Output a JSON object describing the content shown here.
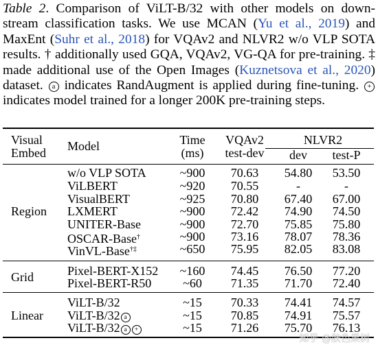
{
  "caption": {
    "label": "Table 2",
    "seg1": ". Comparison of ViLT-B/32 with other models on down-stream classification tasks. We use MCAN (",
    "cite1": "Yu et al., 2019",
    "seg2": ") and MaxEnt (",
    "cite2": "Suhr et al., 2018",
    "seg3": ") for VQAv2 and NLVR2 w/o VLP SOTA results. † additionally used GQA, VQAv2, VG-QA for pre-training. ‡ made additional use of the Open Images (",
    "cite3": "Kuznetsova et al., 2020",
    "seg4": ") dataset. ",
    "symbol_a": "a",
    "seg5": " indicates RandAugment is applied during fine-tuning. ",
    "symbol_plus": "+",
    "seg6": " indicates model trained for a longer 200K pre-training steps."
  },
  "headers": {
    "visual_embed_1": "Visual",
    "visual_embed_2": "Embed",
    "model": "Model",
    "time_1": "Time",
    "time_2": "(ms)",
    "vqa_1": "VQAv2",
    "vqa_2": "test-dev",
    "nlvr": "NLVR2",
    "dev": "dev",
    "testp": "test-P"
  },
  "groups": [
    {
      "embed": "Region",
      "rows": [
        {
          "model": "w/o VLP SOTA",
          "sup": "",
          "time": "~900",
          "vqa": "70.63",
          "dev": "54.80",
          "testp": "53.50"
        },
        {
          "model": "ViLBERT",
          "sup": "",
          "time": "~920",
          "vqa": "70.55",
          "dev": "-",
          "testp": "-"
        },
        {
          "model": "VisualBERT",
          "sup": "",
          "time": "~925",
          "vqa": "70.80",
          "dev": "67.40",
          "testp": "67.00"
        },
        {
          "model": "LXMERT",
          "sup": "",
          "time": "~900",
          "vqa": "72.42",
          "dev": "74.90",
          "testp": "74.50"
        },
        {
          "model": "UNITER-Base",
          "sup": "",
          "time": "~900",
          "vqa": "72.70",
          "dev": "75.85",
          "testp": "75.80"
        },
        {
          "model": "OSCAR-Base",
          "sup": "†",
          "time": "~900",
          "vqa": "73.16",
          "dev": "78.07",
          "testp": "78.36"
        },
        {
          "model": "VinVL-Base",
          "sup": "†‡",
          "time": "~650",
          "vqa": "75.95",
          "dev": "82.05",
          "testp": "83.08"
        }
      ]
    },
    {
      "embed": "Grid",
      "rows": [
        {
          "model": "Pixel-BERT-X152",
          "sup": "",
          "time": "~160",
          "vqa": "74.45",
          "dev": "76.50",
          "testp": "77.20"
        },
        {
          "model": "Pixel-BERT-R50",
          "sup": "",
          "time": "~60",
          "vqa": "71.35",
          "dev": "71.70",
          "testp": "72.40"
        }
      ]
    },
    {
      "embed": "Linear",
      "rows": [
        {
          "model": "ViLT-B/32",
          "marks": [],
          "time": "~15",
          "vqa": "70.33",
          "dev": "74.41",
          "testp": "74.57"
        },
        {
          "model": "ViLT-B/32",
          "marks": [
            "a"
          ],
          "time": "~15",
          "vqa": "70.85",
          "dev": "74.91",
          "testp": "75.57"
        },
        {
          "model": "ViLT-B/32",
          "marks": [
            "a",
            "+"
          ],
          "time": "~15",
          "vqa": "71.26",
          "dev": "75.70",
          "testp": "76.13"
        }
      ]
    }
  ],
  "watermark": "知乎 @肤色果树"
}
